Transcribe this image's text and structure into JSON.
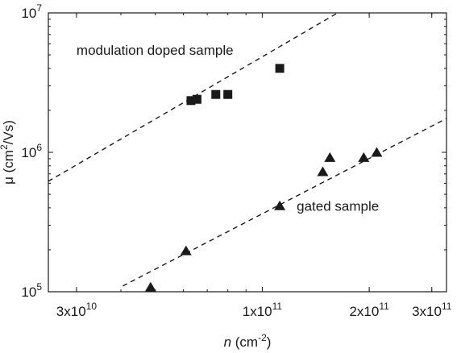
{
  "chart_data": {
    "type": "scatter",
    "x_scale": "log",
    "y_scale": "log",
    "xlim": [
      25000000000,
      330000000000
    ],
    "ylim": [
      100000,
      10000000
    ],
    "grid": false,
    "legend": "none",
    "xlabel": {
      "var": "n",
      "unit_pre": " (cm",
      "unit_sup": "-2",
      "unit_post": ")"
    },
    "ylabel": {
      "var": "μ",
      "unit_pre": " (cm",
      "unit_sup": "2",
      "unit_post": "/Vs)"
    },
    "x_ticks": [
      {
        "value": 30000000000,
        "mant": "3x10",
        "exp": "10"
      },
      {
        "value": 100000000000,
        "mant": "1x10",
        "exp": "11"
      },
      {
        "value": 200000000000,
        "mant": "2x10",
        "exp": "11"
      },
      {
        "value": 300000000000,
        "mant": "3x10",
        "exp": "11"
      }
    ],
    "y_ticks": [
      {
        "value": 100000,
        "mant": "10",
        "exp": "5"
      },
      {
        "value": 1000000,
        "mant": "10",
        "exp": "6"
      },
      {
        "value": 10000000,
        "mant": "10",
        "exp": "7"
      }
    ],
    "series": [
      {
        "label": "modulation doped sample",
        "marker": "square",
        "color": "#1a1a1a",
        "points": [
          [
            63000000000,
            2350000
          ],
          [
            65500000000,
            2400000
          ],
          [
            74000000000,
            2600000
          ],
          [
            80000000000,
            2600000
          ],
          [
            112000000000,
            4000000
          ]
        ],
        "fit_line": [
          [
            25000000000,
            620000
          ],
          [
            163000000000,
            10000000
          ]
        ]
      },
      {
        "label": "gated sample",
        "marker": "triangle",
        "color": "#1a1a1a",
        "points": [
          [
            48500000000,
            107000
          ],
          [
            61000000000,
            195000
          ],
          [
            112000000000,
            410000
          ],
          [
            148000000000,
            720000
          ],
          [
            155000000000,
            910000
          ],
          [
            193000000000,
            910000
          ],
          [
            210000000000,
            990000
          ]
        ],
        "fit_line": [
          [
            40500000000,
            110000
          ],
          [
            330000000000,
            1750000
          ]
        ]
      }
    ],
    "annotations": [
      {
        "text": "modulation doped sample",
        "x": 30000000000,
        "y": 5000000
      },
      {
        "text": "gated sample",
        "x": 125000000000,
        "y": 380000
      }
    ]
  }
}
